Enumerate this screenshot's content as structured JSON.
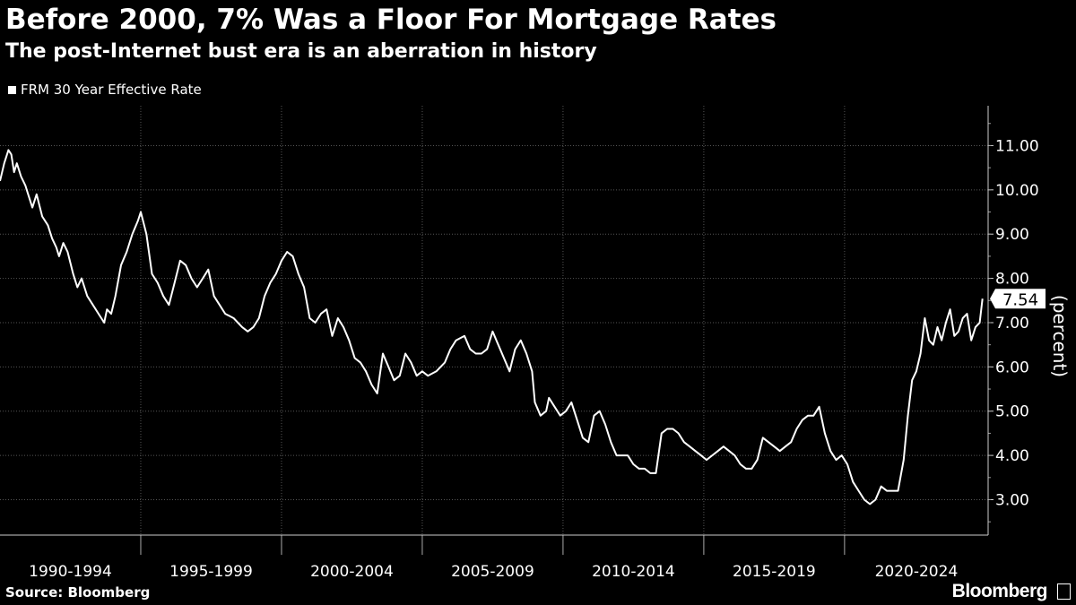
{
  "header": {
    "title": "Before 2000, 7% Was a Floor For Mortgage Rates",
    "subtitle": "The post-Internet bust era is an aberration in history"
  },
  "footer": {
    "source": "Source: Bloomberg",
    "brand": "Bloomberg"
  },
  "colors": {
    "background": "#000000",
    "line": "#ffffff",
    "grid": "#555555"
  },
  "chart_data": {
    "type": "line",
    "title": "Before 2000, 7% Was a Floor For Mortgage Rates",
    "subtitle": "The post-Internet bust era is an aberration in history",
    "xlabel": "",
    "ylabel": "(percent)",
    "ylim": [
      2.2,
      11.9
    ],
    "xlim": [
      1990.0,
      2025.1
    ],
    "y_ticks": [
      3.0,
      4.0,
      5.0,
      6.0,
      7.0,
      8.0,
      9.0,
      10.0,
      11.0
    ],
    "y_tick_labels": [
      "3.00",
      "4.00",
      "5.00",
      "6.00",
      "7.00",
      "8.00",
      "9.00",
      "10.00",
      "11.00"
    ],
    "x_periods": [
      "1990-1994",
      "1995-1999",
      "2000-2004",
      "2005-2009",
      "2010-2014",
      "2015-2019",
      "2020-2024"
    ],
    "x_period_starts": [
      1990,
      1995,
      2000,
      2005,
      2010,
      2015,
      2020
    ],
    "grid": true,
    "legend_position": "top-left",
    "last_value_label": "7.54",
    "series": [
      {
        "name": "FRM 30 Year Effective Rate",
        "x": [
          1990.0,
          1990.15,
          1990.3,
          1990.4,
          1990.5,
          1990.6,
          1990.75,
          1990.9,
          1991.0,
          1991.15,
          1991.3,
          1991.5,
          1991.7,
          1991.85,
          1992.0,
          1992.1,
          1992.25,
          1992.4,
          1992.6,
          1992.75,
          1992.9,
          1993.1,
          1993.3,
          1993.5,
          1993.7,
          1993.8,
          1993.95,
          1994.1,
          1994.3,
          1994.5,
          1994.7,
          1994.9,
          1995.0,
          1995.2,
          1995.4,
          1995.6,
          1995.8,
          1996.0,
          1996.2,
          1996.4,
          1996.6,
          1996.8,
          1997.0,
          1997.2,
          1997.4,
          1997.6,
          1997.8,
          1998.0,
          1998.3,
          1998.6,
          1998.8,
          1999.0,
          1999.2,
          1999.4,
          1999.6,
          1999.8,
          2000.0,
          2000.2,
          2000.4,
          2000.6,
          2000.8,
          2001.0,
          2001.2,
          2001.4,
          2001.6,
          2001.8,
          2002.0,
          2002.2,
          2002.4,
          2002.6,
          2002.8,
          2003.0,
          2003.2,
          2003.4,
          2003.6,
          2003.8,
          2004.0,
          2004.2,
          2004.4,
          2004.6,
          2004.8,
          2005.0,
          2005.2,
          2005.5,
          2005.8,
          2006.0,
          2006.2,
          2006.5,
          2006.7,
          2006.9,
          2007.1,
          2007.3,
          2007.5,
          2007.7,
          2007.9,
          2008.1,
          2008.3,
          2008.5,
          2008.7,
          2008.9,
          2009.0,
          2009.2,
          2009.4,
          2009.5,
          2009.7,
          2009.9,
          2010.1,
          2010.3,
          2010.5,
          2010.7,
          2010.9,
          2011.1,
          2011.3,
          2011.5,
          2011.7,
          2011.9,
          2012.1,
          2012.3,
          2012.5,
          2012.7,
          2012.9,
          2013.1,
          2013.3,
          2013.5,
          2013.7,
          2013.9,
          2014.1,
          2014.3,
          2014.5,
          2014.7,
          2014.9,
          2015.1,
          2015.3,
          2015.5,
          2015.7,
          2015.9,
          2016.1,
          2016.3,
          2016.5,
          2016.7,
          2016.9,
          2017.1,
          2017.3,
          2017.5,
          2017.7,
          2017.9,
          2018.1,
          2018.3,
          2018.5,
          2018.7,
          2018.9,
          2019.1,
          2019.3,
          2019.5,
          2019.7,
          2019.9,
          2020.1,
          2020.3,
          2020.5,
          2020.7,
          2020.9,
          2021.1,
          2021.3,
          2021.5,
          2021.7,
          2021.9,
          2022.1,
          2022.25,
          2022.4,
          2022.55,
          2022.7,
          2022.85,
          2023.0,
          2023.15,
          2023.3,
          2023.45,
          2023.6,
          2023.75,
          2023.9,
          2024.05,
          2024.2,
          2024.35,
          2024.5,
          2024.65,
          2024.8,
          2024.9
        ],
        "values": [
          10.2,
          10.6,
          10.9,
          10.8,
          10.4,
          10.6,
          10.3,
          10.1,
          9.9,
          9.6,
          9.9,
          9.4,
          9.2,
          8.9,
          8.7,
          8.5,
          8.8,
          8.6,
          8.1,
          7.8,
          8.0,
          7.6,
          7.4,
          7.2,
          7.0,
          7.3,
          7.2,
          7.6,
          8.3,
          8.6,
          9.0,
          9.3,
          9.5,
          9.0,
          8.1,
          7.9,
          7.6,
          7.4,
          7.9,
          8.4,
          8.3,
          8.0,
          7.8,
          8.0,
          8.2,
          7.6,
          7.4,
          7.2,
          7.1,
          6.9,
          6.8,
          6.9,
          7.1,
          7.6,
          7.9,
          8.1,
          8.4,
          8.6,
          8.5,
          8.1,
          7.8,
          7.1,
          7.0,
          7.2,
          7.3,
          6.7,
          7.1,
          6.9,
          6.6,
          6.2,
          6.1,
          5.9,
          5.6,
          5.4,
          6.3,
          6.0,
          5.7,
          5.8,
          6.3,
          6.1,
          5.8,
          5.9,
          5.8,
          5.9,
          6.1,
          6.4,
          6.6,
          6.7,
          6.4,
          6.3,
          6.3,
          6.4,
          6.8,
          6.5,
          6.2,
          5.9,
          6.4,
          6.6,
          6.3,
          5.9,
          5.2,
          4.9,
          5.0,
          5.3,
          5.1,
          4.9,
          5.0,
          5.2,
          4.8,
          4.4,
          4.3,
          4.9,
          5.0,
          4.7,
          4.3,
          4.0,
          4.0,
          4.0,
          3.8,
          3.7,
          3.7,
          3.6,
          3.6,
          4.5,
          4.6,
          4.6,
          4.5,
          4.3,
          4.2,
          4.1,
          4.0,
          3.9,
          4.0,
          4.1,
          4.2,
          4.1,
          4.0,
          3.8,
          3.7,
          3.7,
          3.9,
          4.4,
          4.3,
          4.2,
          4.1,
          4.2,
          4.3,
          4.6,
          4.8,
          4.9,
          4.9,
          5.1,
          4.5,
          4.1,
          3.9,
          4.0,
          3.8,
          3.4,
          3.2,
          3.0,
          2.9,
          3.0,
          3.3,
          3.2,
          3.2,
          3.2,
          3.9,
          4.9,
          5.7,
          5.9,
          6.3,
          7.1,
          6.6,
          6.5,
          6.9,
          6.6,
          7.0,
          7.3,
          6.7,
          6.8,
          7.1,
          7.2,
          6.6,
          6.9,
          7.0,
          7.54
        ]
      }
    ]
  }
}
